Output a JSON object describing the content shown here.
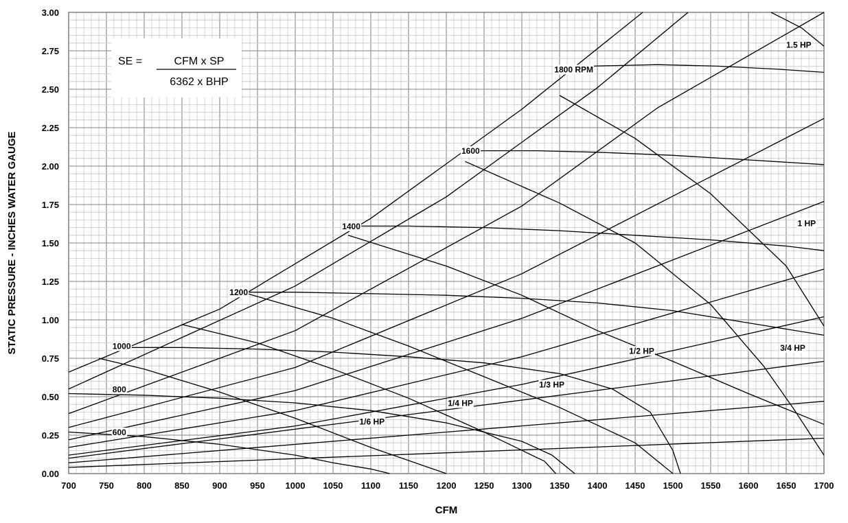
{
  "chart_data": {
    "type": "line",
    "xlabel": "CFM",
    "ylabel": "STATIC PRESSURE - INCHES WATER GAUGE",
    "xlim": [
      700,
      1700
    ],
    "ylim": [
      0,
      3
    ],
    "xticks": [
      "700",
      "750",
      "800",
      "850",
      "900",
      "950",
      "1000",
      "1050",
      "1100",
      "1150",
      "1200",
      "1250",
      "1300",
      "1350",
      "1400",
      "1450",
      "1500",
      "1550",
      "1600",
      "1650",
      "1700"
    ],
    "yticks": [
      "0.00",
      "0.25",
      "0.50",
      "0.75",
      "1.00",
      "1.25",
      "1.50",
      "1.75",
      "2.00",
      "2.25",
      "2.50",
      "2.75",
      "3.00"
    ],
    "grid": true,
    "formula": {
      "lhs": "SE =",
      "numerator": "CFM x SP",
      "denominator": "6362 x BHP"
    },
    "rpm_curves": [
      {
        "name": "600",
        "points": [
          [
            700,
            0.27
          ],
          [
            800,
            0.24
          ],
          [
            900,
            0.19
          ],
          [
            1000,
            0.12
          ],
          [
            1050,
            0.07
          ],
          [
            1100,
            0.03
          ],
          [
            1125,
            0.0
          ]
        ]
      },
      {
        "name": "800",
        "points": [
          [
            700,
            0.52
          ],
          [
            800,
            0.51
          ],
          [
            900,
            0.49
          ],
          [
            1000,
            0.46
          ],
          [
            1100,
            0.41
          ],
          [
            1200,
            0.33
          ],
          [
            1300,
            0.21
          ],
          [
            1340,
            0.12
          ],
          [
            1370,
            0.0
          ]
        ]
      },
      {
        "name": "1000",
        "points": [
          [
            770,
            0.82
          ],
          [
            850,
            0.82
          ],
          [
            950,
            0.81
          ],
          [
            1050,
            0.79
          ],
          [
            1150,
            0.76
          ],
          [
            1250,
            0.72
          ],
          [
            1350,
            0.65
          ],
          [
            1420,
            0.55
          ],
          [
            1470,
            0.4
          ],
          [
            1500,
            0.15
          ],
          [
            1510,
            0.0
          ]
        ]
      },
      {
        "name": "1200",
        "points": [
          [
            930,
            1.18
          ],
          [
            1000,
            1.18
          ],
          [
            1100,
            1.17
          ],
          [
            1200,
            1.16
          ],
          [
            1300,
            1.14
          ],
          [
            1400,
            1.11
          ],
          [
            1500,
            1.06
          ],
          [
            1600,
            0.98
          ],
          [
            1700,
            0.9
          ]
        ]
      },
      {
        "name": "1400",
        "points": [
          [
            1070,
            1.61
          ],
          [
            1150,
            1.61
          ],
          [
            1250,
            1.6
          ],
          [
            1350,
            1.58
          ],
          [
            1450,
            1.55
          ],
          [
            1550,
            1.52
          ],
          [
            1650,
            1.48
          ],
          [
            1700,
            1.45
          ]
        ]
      },
      {
        "name": "1600",
        "points": [
          [
            1240,
            2.1
          ],
          [
            1320,
            2.1
          ],
          [
            1400,
            2.09
          ],
          [
            1500,
            2.07
          ],
          [
            1600,
            2.04
          ],
          [
            1700,
            2.01
          ]
        ]
      },
      {
        "name": "1800 RPM",
        "points": [
          [
            1390,
            2.65
          ],
          [
            1480,
            2.66
          ],
          [
            1560,
            2.65
          ],
          [
            1640,
            2.63
          ],
          [
            1700,
            2.61
          ]
        ]
      }
    ],
    "system_curves": [
      {
        "points": [
          [
            700,
            0.04
          ],
          [
            1700,
            0.23
          ]
        ]
      },
      {
        "points": [
          [
            700,
            0.07
          ],
          [
            1700,
            0.47
          ]
        ]
      },
      {
        "points": [
          [
            700,
            0.1
          ],
          [
            1700,
            0.73
          ]
        ]
      },
      {
        "points": [
          [
            700,
            0.12
          ],
          [
            1000,
            0.31
          ],
          [
            1300,
            0.58
          ],
          [
            1700,
            1.02
          ]
        ]
      },
      {
        "points": [
          [
            700,
            0.17
          ],
          [
            1000,
            0.41
          ],
          [
            1300,
            0.76
          ],
          [
            1700,
            1.33
          ]
        ]
      },
      {
        "points": [
          [
            700,
            0.22
          ],
          [
            1000,
            0.54
          ],
          [
            1300,
            1.01
          ],
          [
            1700,
            1.77
          ]
        ]
      },
      {
        "points": [
          [
            700,
            0.3
          ],
          [
            1000,
            0.69
          ],
          [
            1300,
            1.3
          ],
          [
            1700,
            2.31
          ]
        ]
      },
      {
        "points": [
          [
            700,
            0.39
          ],
          [
            1000,
            0.93
          ],
          [
            1300,
            1.74
          ],
          [
            1480,
            2.38
          ],
          [
            1700,
            3.0
          ]
        ]
      },
      {
        "points": [
          [
            700,
            0.55
          ],
          [
            1000,
            1.22
          ],
          [
            1200,
            1.8
          ],
          [
            1400,
            2.51
          ],
          [
            1520,
            3.0
          ]
        ]
      },
      {
        "points": [
          [
            700,
            0.66
          ],
          [
            900,
            1.07
          ],
          [
            1100,
            1.66
          ],
          [
            1300,
            2.37
          ],
          [
            1460,
            3.0
          ]
        ]
      }
    ],
    "hp_curves": [
      {
        "name": "1/6 HP",
        "points": [
          [
            740,
            0.75
          ],
          [
            800,
            0.68
          ],
          [
            900,
            0.53
          ],
          [
            1000,
            0.36
          ],
          [
            1100,
            0.17
          ],
          [
            1200,
            0.0
          ]
        ]
      },
      {
        "name": "1/4 HP",
        "points": [
          [
            850,
            0.97
          ],
          [
            950,
            0.85
          ],
          [
            1050,
            0.68
          ],
          [
            1150,
            0.49
          ],
          [
            1250,
            0.27
          ],
          [
            1330,
            0.08
          ],
          [
            1345,
            0.0
          ]
        ]
      },
      {
        "name": "1/3 HP",
        "points": [
          [
            930,
            1.18
          ],
          [
            1050,
            1.01
          ],
          [
            1150,
            0.83
          ],
          [
            1250,
            0.63
          ],
          [
            1350,
            0.43
          ],
          [
            1450,
            0.2
          ],
          [
            1500,
            0.0
          ]
        ]
      },
      {
        "name": "1/2 HP",
        "points": [
          [
            1070,
            1.55
          ],
          [
            1200,
            1.35
          ],
          [
            1300,
            1.16
          ],
          [
            1400,
            0.93
          ],
          [
            1500,
            0.73
          ],
          [
            1600,
            0.52
          ],
          [
            1700,
            0.32
          ]
        ]
      },
      {
        "name": "3/4 HP",
        "points": [
          [
            1225,
            2.03
          ],
          [
            1350,
            1.76
          ],
          [
            1450,
            1.5
          ],
          [
            1550,
            1.1
          ],
          [
            1620,
            0.7
          ],
          [
            1660,
            0.42
          ],
          [
            1700,
            0.12
          ]
        ]
      },
      {
        "name": "1 HP",
        "points": [
          [
            1350,
            2.46
          ],
          [
            1450,
            2.18
          ],
          [
            1550,
            1.82
          ],
          [
            1650,
            1.35
          ],
          [
            1700,
            0.96
          ]
        ]
      },
      {
        "name": "1.5 HP",
        "points": [
          [
            1630,
            3.0
          ],
          [
            1670,
            2.9
          ],
          [
            1700,
            2.78
          ]
        ]
      }
    ],
    "annotations": [
      {
        "text": "1800 RPM",
        "x": 1343,
        "y": 2.61
      },
      {
        "text": "1600",
        "x": 1220,
        "y": 2.08
      },
      {
        "text": "1400",
        "x": 1062,
        "y": 1.59
      },
      {
        "text": "1200",
        "x": 913,
        "y": 1.16
      },
      {
        "text": "1000",
        "x": 758,
        "y": 0.81
      },
      {
        "text": "800",
        "x": 758,
        "y": 0.53
      },
      {
        "text": "600",
        "x": 758,
        "y": 0.25
      },
      {
        "text": "1.5 HP",
        "x": 1650,
        "y": 2.77
      },
      {
        "text": "1 HP",
        "x": 1665,
        "y": 1.61
      },
      {
        "text": "3/4 HP",
        "x": 1642,
        "y": 0.8
      },
      {
        "text": "1/2 HP",
        "x": 1442,
        "y": 0.78
      },
      {
        "text": "1/3 HP",
        "x": 1323,
        "y": 0.56
      },
      {
        "text": "1/4 HP",
        "x": 1202,
        "y": 0.44
      },
      {
        "text": "1/6 HP",
        "x": 1085,
        "y": 0.32
      }
    ]
  }
}
